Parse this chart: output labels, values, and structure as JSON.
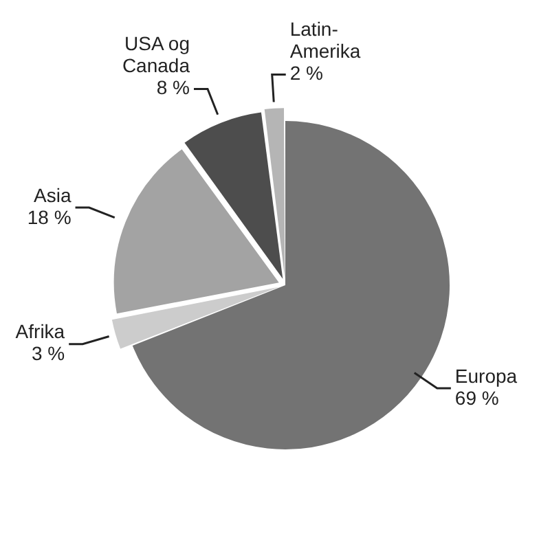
{
  "chart_data": {
    "type": "pie",
    "categories": [
      "Europa",
      "Afrika",
      "Asia",
      "USA og Canada",
      "Latin-Amerika"
    ],
    "values": [
      69,
      3,
      18,
      8,
      2
    ],
    "value_labels": [
      "69 %",
      "3 %",
      "18 %",
      "8 %",
      "2 %"
    ],
    "colors": [
      "#737373",
      "#cccccc",
      "#a3a3a3",
      "#4d4d4d",
      "#b5b5b5"
    ],
    "legend": false
  }
}
